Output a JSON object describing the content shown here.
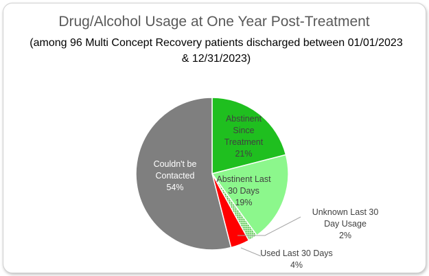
{
  "chart_data": {
    "type": "pie",
    "title": "Drug/Alcohol Usage at One Year Post-Treatment",
    "subtitle_lines": [
      "(among 96 Multi Concept Recovery patients discharged between 01/01/2023",
      "& 12/31/2023)"
    ],
    "slices": [
      {
        "label_lines": [
          "Abstinent",
          "Since",
          "Treatment"
        ],
        "value": 21,
        "value_label": "21%",
        "color": "#1fbf1f",
        "pattern": "solid"
      },
      {
        "label_lines": [
          "Abstinent Last",
          "30 Days"
        ],
        "value": 19,
        "value_label": "19%",
        "color": "#8cf78c",
        "pattern": "solid"
      },
      {
        "label_lines": [
          "Unknown Last 30",
          "Day Usage"
        ],
        "value": 2,
        "value_label": "2%",
        "color": "#2ea82e",
        "pattern": "dotted"
      },
      {
        "label_lines": [
          "Used Last 30 Days"
        ],
        "value": 4,
        "value_label": "4%",
        "color": "#ff0000",
        "pattern": "solid"
      },
      {
        "label_lines": [
          "Couldn't be",
          "Contacted"
        ],
        "value": 54,
        "value_label": "54%",
        "color": "#7f7f7f",
        "pattern": "solid"
      }
    ],
    "legend": "none"
  }
}
